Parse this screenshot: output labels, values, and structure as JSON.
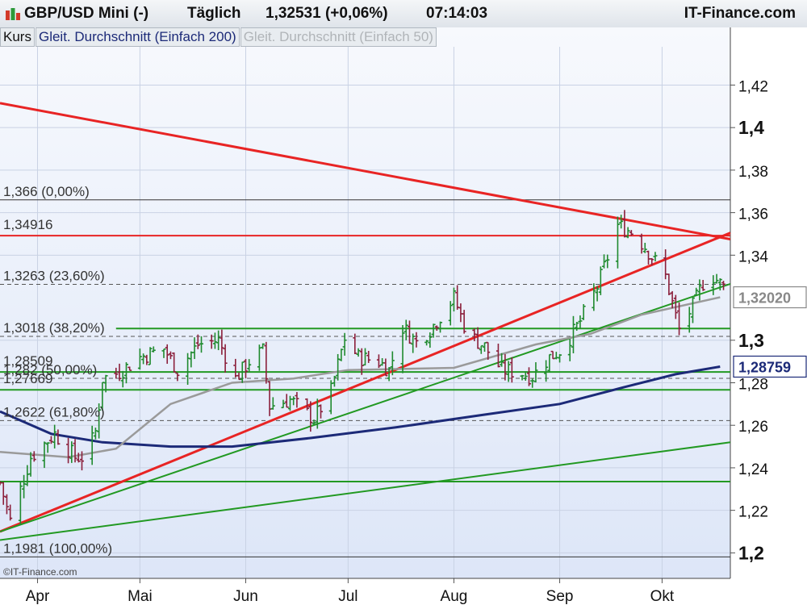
{
  "header": {
    "symbol": "GBP/USD Mini (-)",
    "period": "Täglich",
    "price": "1,32531 (+0,06%)",
    "time": "07:14:03",
    "brand": "IT-Finance.com"
  },
  "legend": {
    "kurs": "Kurs",
    "sma200": "Gleit. Durchschnitt (Einfach 200)",
    "sma50": "Gleit. Durchschnitt (Einfach 50)"
  },
  "copyright": "©IT-Finance.com",
  "colors": {
    "background": "#dde6f8",
    "up": "#1f8a2e",
    "down": "#8b1f3b",
    "sma200": "#1c2a78",
    "sma50": "#9a9a9a",
    "red_line": "#e82424",
    "green_line": "#229922"
  },
  "chart_data": {
    "type": "candlestick",
    "x_range": [
      "2017-03-21",
      "2017-10-21"
    ],
    "ylim": [
      1.188,
      1.438
    ],
    "y_ticks": [
      {
        "value": 1.42,
        "label": "1,42",
        "bold": false
      },
      {
        "value": 1.4,
        "label": "1,4",
        "bold": true
      },
      {
        "value": 1.38,
        "label": "1,38",
        "bold": false
      },
      {
        "value": 1.36,
        "label": "1,36",
        "bold": false
      },
      {
        "value": 1.34,
        "label": "1,34",
        "bold": false
      },
      {
        "value": 1.3,
        "label": "1,3",
        "bold": true
      },
      {
        "value": 1.28,
        "label": "1,28",
        "bold": false
      },
      {
        "value": 1.26,
        "label": "1,26",
        "bold": false
      },
      {
        "value": 1.24,
        "label": "1,24",
        "bold": false
      },
      {
        "value": 1.22,
        "label": "1,22",
        "bold": false
      },
      {
        "value": 1.2,
        "label": "1,2",
        "bold": true
      }
    ],
    "x_ticks": [
      {
        "date": "2017-04-01",
        "label": "Apr"
      },
      {
        "date": "2017-05-01",
        "label": "Mai"
      },
      {
        "date": "2017-06-01",
        "label": "Jun"
      },
      {
        "date": "2017-07-01",
        "label": "Jul"
      },
      {
        "date": "2017-08-01",
        "label": "Aug"
      },
      {
        "date": "2017-09-01",
        "label": "Sep"
      },
      {
        "date": "2017-10-01",
        "label": "Okt"
      }
    ],
    "value_tags": [
      {
        "value": 1.3202,
        "label": "1,32020",
        "color": "#888888",
        "bold": true
      },
      {
        "value": 1.28759,
        "label": "1,28759",
        "color": "#1c2a78",
        "bold": true
      }
    ],
    "fib_levels": [
      {
        "value": 1.366,
        "label": "1,366 (0,00%)",
        "style": "solid"
      },
      {
        "value": 1.3263,
        "label": "1,3263 (23,60%)",
        "style": "dashed"
      },
      {
        "value": 1.3018,
        "label": "1,3018 (38,20%)",
        "style": "dashed"
      },
      {
        "value": 1.2821,
        "label": "1,282 (50,00%)",
        "style": "dashed"
      },
      {
        "value": 1.2622,
        "label": "1,2622 (61,80%)",
        "style": "dashed"
      },
      {
        "value": 1.1981,
        "label": "1,1981 (100,00%)",
        "style": "solid"
      }
    ],
    "horizontal_levels": [
      {
        "value": 1.34916,
        "label": "1,34916",
        "color": "red"
      },
      {
        "value": 1.28509,
        "label": "1,28509",
        "color": "green"
      },
      {
        "value": 1.27669,
        "label": "1,27669",
        "color": "green"
      },
      {
        "value": 1.3055,
        "label": "",
        "color": "green",
        "from": "2017-04-24"
      },
      {
        "value": 1.2335,
        "label": "",
        "color": "green"
      }
    ],
    "trendlines": [
      {
        "color": "red",
        "from": [
          "2017-03-21",
          1.4115
        ],
        "to": [
          "2017-10-21",
          1.3475
        ]
      },
      {
        "color": "red",
        "from": [
          "2017-03-21",
          1.21
        ],
        "to": [
          "2017-10-21",
          1.3505
        ]
      },
      {
        "color": "green",
        "from": [
          "2017-03-21",
          1.21
        ],
        "to": [
          "2017-10-21",
          1.3265
        ]
      },
      {
        "color": "green",
        "from": [
          "2017-03-21",
          1.206
        ],
        "to": [
          "2017-10-21",
          1.252
        ]
      }
    ],
    "series": [
      {
        "name": "Gleit. Durchschnitt (Einfach 200)",
        "kind": "line",
        "color": "#1c2a78",
        "points": [
          [
            "2017-03-21",
            1.2665
          ],
          [
            "2017-04-05",
            1.256
          ],
          [
            "2017-04-20",
            1.252
          ],
          [
            "2017-05-10",
            1.25
          ],
          [
            "2017-05-28",
            1.25
          ],
          [
            "2017-06-20",
            1.254
          ],
          [
            "2017-07-15",
            1.259
          ],
          [
            "2017-08-10",
            1.265
          ],
          [
            "2017-09-01",
            1.27
          ],
          [
            "2017-09-20",
            1.278
          ],
          [
            "2017-10-05",
            1.284
          ],
          [
            "2017-10-18",
            1.2876
          ]
        ]
      },
      {
        "name": "Gleit. Durchschnitt (Einfach 50)",
        "kind": "line",
        "color": "#9a9a9a",
        "points": [
          [
            "2017-03-21",
            1.2475
          ],
          [
            "2017-04-10",
            1.245
          ],
          [
            "2017-04-24",
            1.249
          ],
          [
            "2017-05-10",
            1.27
          ],
          [
            "2017-05-28",
            1.28
          ],
          [
            "2017-06-15",
            1.282
          ],
          [
            "2017-07-01",
            1.286
          ],
          [
            "2017-08-01",
            1.287
          ],
          [
            "2017-08-25",
            1.298
          ],
          [
            "2017-09-10",
            1.303
          ],
          [
            "2017-09-25",
            1.312
          ],
          [
            "2017-10-18",
            1.3202
          ]
        ]
      },
      {
        "name": "Kurs",
        "kind": "ohlc_close",
        "anchors": [
          [
            "2017-03-21",
            1.233
          ],
          [
            "2017-03-24",
            1.215
          ],
          [
            "2017-03-30",
            1.245
          ],
          [
            "2017-04-06",
            1.256
          ],
          [
            "2017-04-12",
            1.245
          ],
          [
            "2017-04-15",
            1.245
          ],
          [
            "2017-04-18",
            1.257
          ],
          [
            "2017-04-20",
            1.282
          ],
          [
            "2017-04-25",
            1.285
          ],
          [
            "2017-05-01",
            1.292
          ],
          [
            "2017-05-08",
            1.296
          ],
          [
            "2017-05-12",
            1.286
          ],
          [
            "2017-05-18",
            1.298
          ],
          [
            "2017-05-24",
            1.3
          ],
          [
            "2017-05-29",
            1.282
          ],
          [
            "2017-06-02",
            1.29
          ],
          [
            "2017-06-06",
            1.295
          ],
          [
            "2017-06-08",
            1.269
          ],
          [
            "2017-06-14",
            1.272
          ],
          [
            "2017-06-21",
            1.263
          ],
          [
            "2017-06-26",
            1.276
          ],
          [
            "2017-06-30",
            1.301
          ],
          [
            "2017-07-04",
            1.292
          ],
          [
            "2017-07-10",
            1.29
          ],
          [
            "2017-07-13",
            1.286
          ],
          [
            "2017-07-17",
            1.306
          ],
          [
            "2017-07-21",
            1.299
          ],
          [
            "2017-07-25",
            1.305
          ],
          [
            "2017-08-01",
            1.32
          ],
          [
            "2017-08-05",
            1.303
          ],
          [
            "2017-08-10",
            1.297
          ],
          [
            "2017-08-15",
            1.286
          ],
          [
            "2017-08-20",
            1.285
          ],
          [
            "2017-08-24",
            1.283
          ],
          [
            "2017-08-29",
            1.292
          ],
          [
            "2017-09-02",
            1.296
          ],
          [
            "2017-09-07",
            1.309
          ],
          [
            "2017-09-12",
            1.325
          ],
          [
            "2017-09-15",
            1.339
          ],
          [
            "2017-09-18",
            1.354
          ],
          [
            "2017-09-22",
            1.351
          ],
          [
            "2017-09-26",
            1.344
          ],
          [
            "2017-10-02",
            1.33
          ],
          [
            "2017-10-06",
            1.305
          ],
          [
            "2017-10-10",
            1.316
          ],
          [
            "2017-10-13",
            1.327
          ],
          [
            "2017-10-16",
            1.33
          ],
          [
            "2017-10-19",
            1.325
          ]
        ]
      }
    ]
  }
}
